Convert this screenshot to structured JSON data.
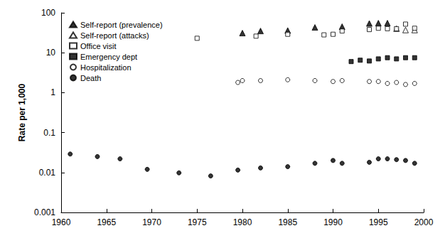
{
  "chart_data": {
    "type": "scatter",
    "y_label": "Rate per 1,000",
    "log": "y",
    "grid": false,
    "legend": "top-left",
    "xlim": [
      1960,
      2000
    ],
    "xticks": [
      1960,
      1965,
      1970,
      1975,
      1980,
      1985,
      1990,
      1995,
      2000
    ],
    "ylim": [
      0.001,
      100
    ],
    "yticks": [
      0.001,
      0.01,
      0.1,
      1,
      10,
      100
    ],
    "series": [
      {
        "name": "Self-report (prevalence)",
        "color": "#000000",
        "marker": "filled-triangle",
        "x": [
          1980,
          1982,
          1985,
          1988,
          1991,
          1994,
          1995,
          1996
        ],
        "values": [
          31,
          35,
          36,
          43,
          45,
          54,
          55,
          55
        ]
      },
      {
        "name": "Self-report (attacks)",
        "color": "#000000",
        "marker": "open-triangle",
        "x": [
          1997,
          1998,
          1999
        ],
        "values": [
          40,
          37,
          37
        ]
      },
      {
        "name": "Office visit",
        "color": "#000000",
        "marker": "open-square",
        "x": [
          1975,
          1981.5,
          1985,
          1989,
          1990,
          1991,
          1994,
          1995,
          1996,
          1997,
          1998,
          1999
        ],
        "values": [
          23,
          26,
          29,
          28,
          29,
          35,
          38,
          41,
          40,
          40,
          52,
          41
        ]
      },
      {
        "name": "Emergency dept",
        "color": "#000000",
        "marker": "filled-square",
        "x": [
          1992,
          1993,
          1994,
          1995,
          1996,
          1997,
          1998,
          1999
        ],
        "values": [
          6,
          6.5,
          6.2,
          7,
          7.5,
          7,
          7.5,
          7.5
        ]
      },
      {
        "name": "Hospitalization",
        "color": "#000000",
        "marker": "open-circle",
        "x": [
          1979.5,
          1980,
          1982,
          1985,
          1988,
          1990,
          1991,
          1994,
          1995,
          1996,
          1997,
          1998,
          1999
        ],
        "values": [
          1.8,
          2,
          2,
          2.1,
          2,
          1.9,
          2,
          1.9,
          1.9,
          1.7,
          1.8,
          1.6,
          1.7
        ]
      },
      {
        "name": "Death",
        "color": "#000000",
        "marker": "filled-circle",
        "x": [
          1961,
          1964,
          1966.5,
          1969.5,
          1973,
          1976.5,
          1979.5,
          1982,
          1985,
          1988,
          1990,
          1991,
          1994,
          1995,
          1996,
          1997,
          1998,
          1999
        ],
        "values": [
          0.029,
          0.025,
          0.022,
          0.012,
          0.0098,
          0.0082,
          0.0115,
          0.013,
          0.014,
          0.017,
          0.02,
          0.017,
          0.018,
          0.022,
          0.022,
          0.021,
          0.02,
          0.017
        ]
      }
    ]
  }
}
